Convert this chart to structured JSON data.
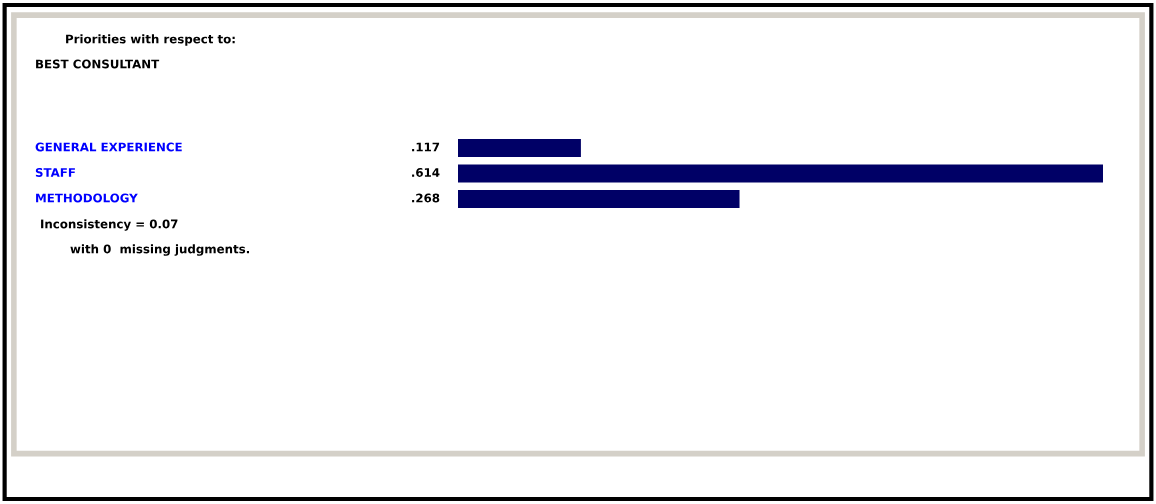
{
  "chart_data": {
    "type": "bar",
    "orientation": "horizontal",
    "title": "Priorities with respect to:",
    "subtitle": "BEST CONSULTANT",
    "categories": [
      "GENERAL EXPERIENCE",
      "STAFF",
      "METHODOLOGY"
    ],
    "values": [
      0.117,
      0.614,
      0.268
    ],
    "value_labels": [
      ".117",
      ".614",
      ".268"
    ],
    "color": "#000066",
    "annotations": [
      "Inconsistency = 0.07",
      "with 0  missing judgments."
    ]
  }
}
